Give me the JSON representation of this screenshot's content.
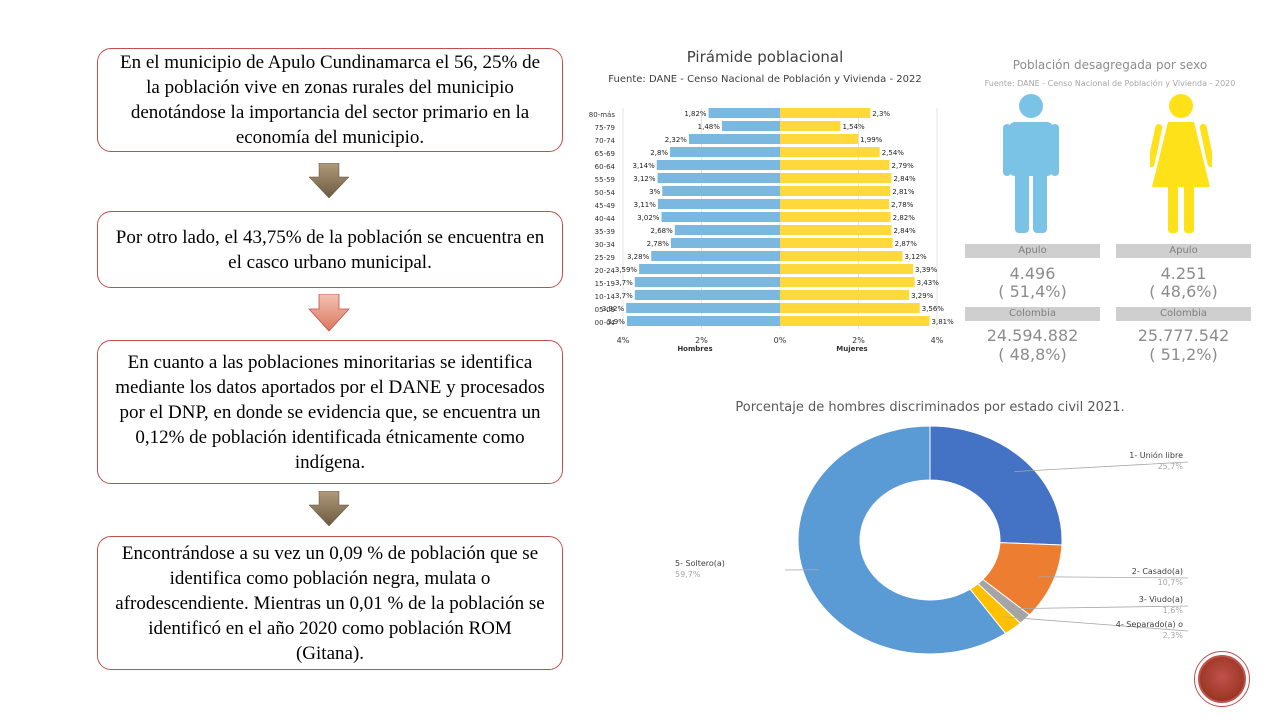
{
  "text_boxes": [
    "En el municipio de Apulo Cundinamarca  el 56, 25% de la población vive en zonas rurales del municipio denotándose  la importancia  del sector primario  en la economía  del municipio.",
    "Por otro lado, el 43,75% de la población se encuentra  en el casco urbano municipal.",
    "En cuanto a las poblaciones minoritarias se identifica mediante  los datos aportados por el DANE y procesados  por el DNP, en donde se evidencia  que, se encuentra  un 0,12% de población identificada  étnicamente  como indígena.",
    "Encontrándose  a su vez un 0,09 % de población que se identifica como población negra, mulata o afrodescendiente.  Mientras un 0,01 % de la población se identificó en el año 2020 como población ROM (Gitana)."
  ],
  "pyramid": {
    "title": "Pirámide poblacional",
    "subtitle": "Fuente: DANE - Censo Nacional de Población y Vivienda - 2022",
    "chart_data": {
      "type": "bar",
      "orientation": "horizontal-pyramid",
      "categories": [
        "80-más",
        "75-79",
        "70-74",
        "65-69",
        "60-64",
        "55-59",
        "50-54",
        "45-49",
        "40-44",
        "35-39",
        "30-34",
        "25-29",
        "20-24",
        "15-19",
        "10-14",
        "05-09",
        "00-04"
      ],
      "series": [
        {
          "name": "Hombres",
          "values": [
            1.82,
            1.48,
            2.32,
            2.8,
            3.14,
            3.12,
            3.0,
            3.11,
            3.02,
            2.68,
            2.78,
            3.28,
            3.59,
            3.7,
            3.7,
            3.92,
            3.9
          ],
          "labels": [
            "1,82%",
            "1,48%",
            "2,32%",
            "2,8%",
            "3,14%",
            "3,12%",
            "3%",
            "3,11%",
            "3,02%",
            "2,68%",
            "2,78%",
            "3,28%",
            "3,59%",
            "3,7%",
            "3,7%",
            "3,92%",
            "3,9%"
          ]
        },
        {
          "name": "Mujeres",
          "values": [
            2.3,
            1.54,
            1.99,
            2.54,
            2.79,
            2.84,
            2.81,
            2.78,
            2.82,
            2.84,
            2.87,
            3.12,
            3.39,
            3.43,
            3.29,
            3.56,
            3.81
          ],
          "labels": [
            "2,3%",
            "1,54%",
            "1,99%",
            "2,54%",
            "2,79%",
            "2,84%",
            "2,81%",
            "2,78%",
            "2,82%",
            "2,84%",
            "2,87%",
            "3,12%",
            "3,39%",
            "3,43%",
            "3,29%",
            "3,56%",
            "3,81%"
          ]
        }
      ],
      "xticks": [
        "4%",
        "2%",
        "0%",
        "2%",
        "4%"
      ],
      "xlim": [
        -4,
        4
      ],
      "colors": {
        "Hombres": "#7ab8e0",
        "Mujeres": "#ffd93b"
      }
    }
  },
  "sex_panel": {
    "title": "Población desagregada por sexo",
    "subtitle": "Fuente: DANE - Censo Nacional de Población y Vivienda - 2020",
    "male": {
      "apulo_label": "Apulo",
      "apulo_count": "4.496",
      "apulo_pct": "( 51,4%)",
      "col_label": "Colombia",
      "col_count": "24.594.882",
      "col_pct": "( 48,8%)",
      "color": "#7ac3e6"
    },
    "female": {
      "apulo_label": "Apulo",
      "apulo_count": "4.251",
      "apulo_pct": "( 48,6%)",
      "col_label": "Colombia",
      "col_count": "25.777.542",
      "col_pct": "( 51,2%)",
      "color": "#ffe11a"
    }
  },
  "donut": {
    "title": "Porcentaje de hombres discriminados por estado civil 2021.",
    "chart_data": {
      "type": "pie",
      "donut": true,
      "slices": [
        {
          "label": "1- Unión libre",
          "value": 25.7,
          "pct": "25,7%",
          "color": "#4472c4"
        },
        {
          "label": "2- Casado(a)",
          "value": 10.7,
          "pct": "10,7%",
          "color": "#ed7d31"
        },
        {
          "label": "3- Viudo(a)",
          "value": 1.6,
          "pct": "1,6%",
          "color": "#a5a5a5"
        },
        {
          "label": "4- Separado(a) o",
          "value": 2.3,
          "pct": "2,3%",
          "color": "#ffc000"
        },
        {
          "label": "5- Soltero(a)",
          "value": 59.7,
          "pct": "59,7%",
          "color": "#5b9bd5"
        }
      ]
    }
  }
}
